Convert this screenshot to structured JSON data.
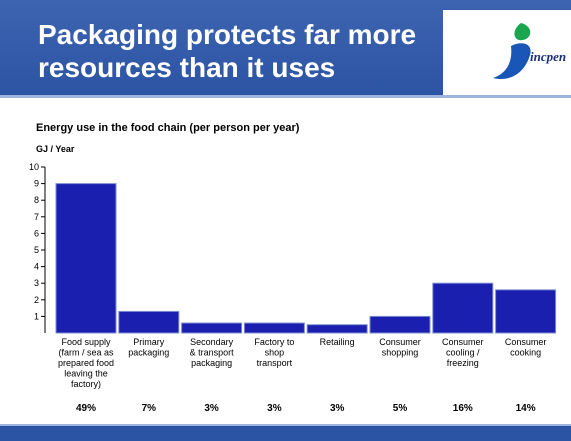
{
  "header": {
    "title_line1": "Packaging protects far more",
    "title_line2": "resources than it uses",
    "logo_text": "incpen",
    "background_color": "#2c54a4"
  },
  "chart_data": {
    "type": "bar",
    "title": "Energy use in the food chain (per person per year)",
    "ylabel": "GJ / Year",
    "xlabel": "",
    "ylim": [
      0,
      10
    ],
    "yticks": [
      1,
      2,
      3,
      4,
      5,
      6,
      7,
      8,
      9,
      10
    ],
    "bar_color": "#1a1fb0",
    "categories": [
      [
        "Food supply",
        "(farm / sea as",
        "prepared food",
        "leaving the",
        "factory)"
      ],
      [
        "Primary",
        "packaging"
      ],
      [
        "Secondary",
        "& transport",
        "packaging"
      ],
      [
        "Factory to",
        "shop",
        "transport"
      ],
      [
        "Retailing"
      ],
      [
        "Consumer",
        "shopping"
      ],
      [
        "Consumer",
        "cooling /",
        "freezing"
      ],
      [
        "Consumer",
        "cooking"
      ]
    ],
    "values": [
      9.0,
      1.3,
      0.6,
      0.6,
      0.5,
      1.0,
      3.0,
      2.6
    ],
    "percentages": [
      "49%",
      "7%",
      "3%",
      "3%",
      "3%",
      "5%",
      "16%",
      "14%"
    ]
  }
}
